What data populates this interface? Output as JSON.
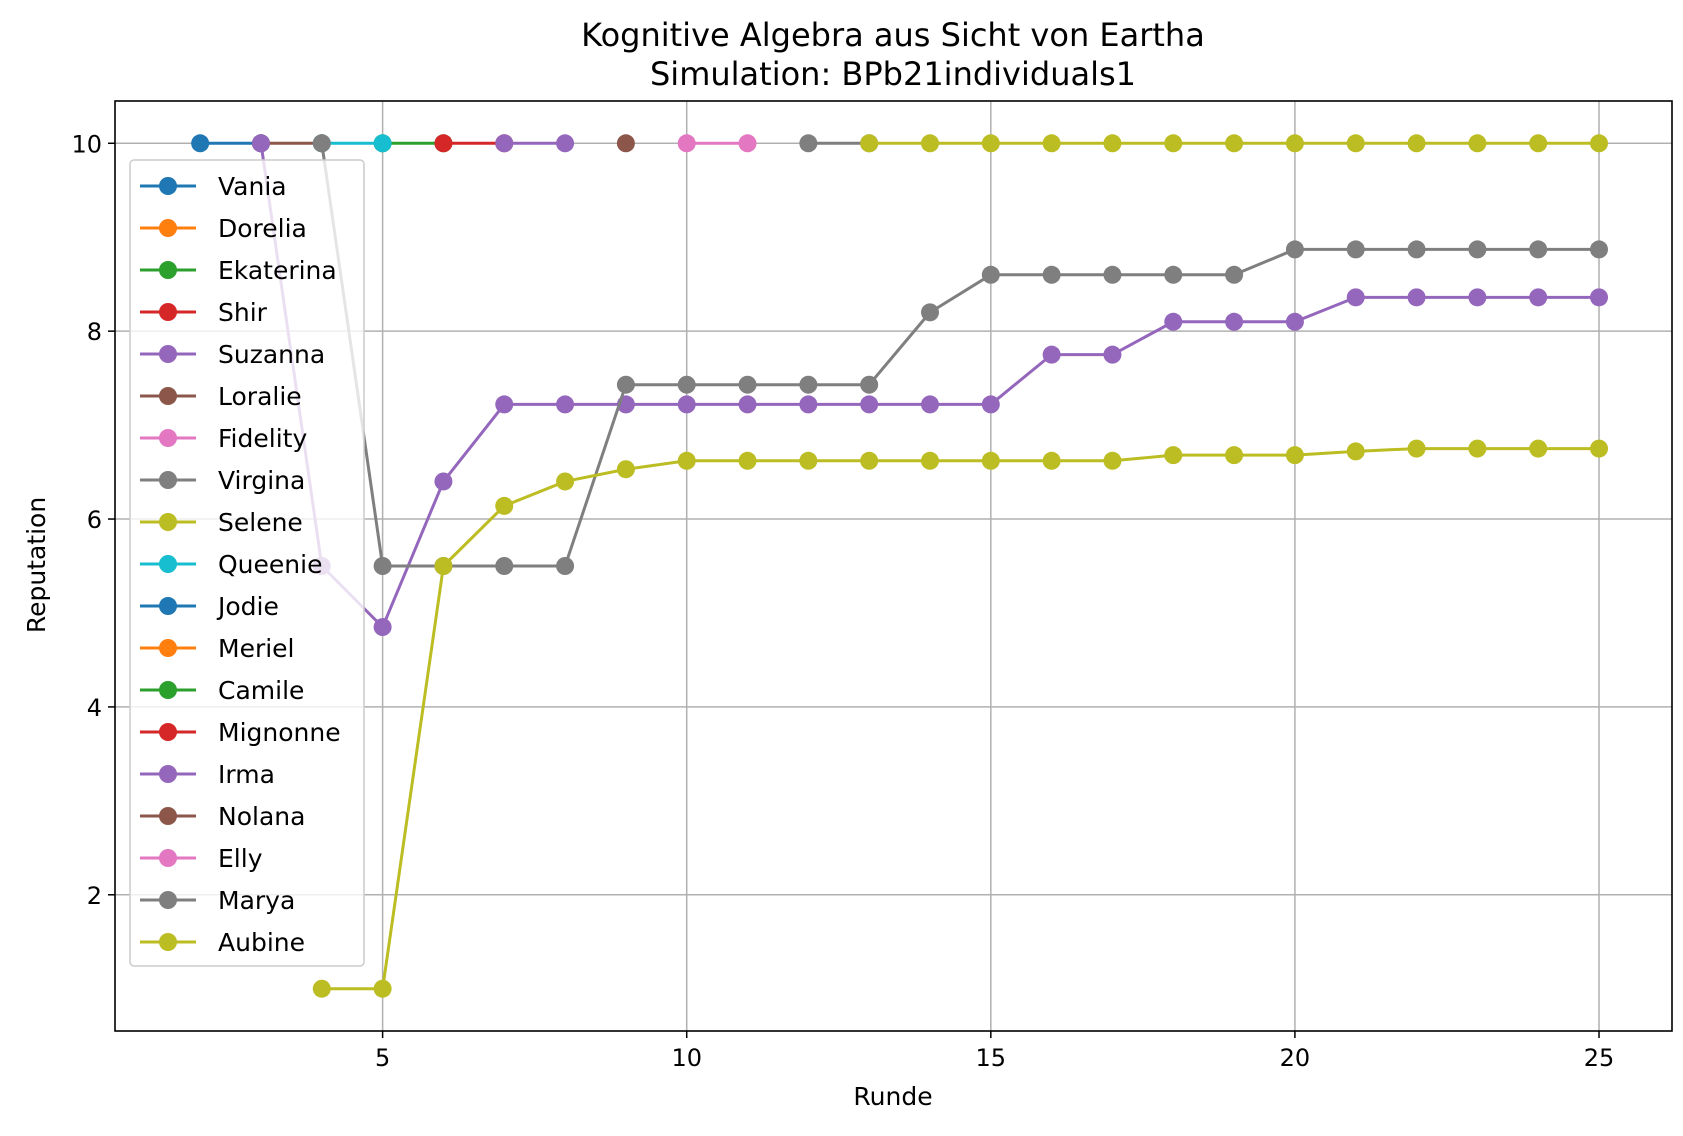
{
  "chart_data": {
    "type": "line",
    "title": "Kognitive Algebra aus Sicht von Eartha",
    "subtitle": "Simulation: BPb21individuals1",
    "xlabel": "Runde",
    "ylabel": "Reputation",
    "xlim": [
      0.6,
      26.2
    ],
    "ylim": [
      0.55,
      10.45
    ],
    "xticks": [
      5,
      10,
      15,
      20,
      25
    ],
    "yticks": [
      2,
      4,
      6,
      8,
      10
    ],
    "grid": true,
    "legend_position": "upper left",
    "series": [
      {
        "name": "Vania",
        "color": "#1f77b4",
        "points": [
          [
            2,
            10
          ],
          [
            3,
            10
          ]
        ]
      },
      {
        "name": "Dorelia",
        "color": "#ff7f0e",
        "points": []
      },
      {
        "name": "Ekaterina",
        "color": "#2ca02c",
        "points": [
          [
            5,
            10
          ],
          [
            6,
            10
          ]
        ]
      },
      {
        "name": "Shir",
        "color": "#d62728",
        "points": [
          [
            6,
            10
          ],
          [
            7,
            10
          ]
        ]
      },
      {
        "name": "Suzanna",
        "color": "#9467bd",
        "points": [
          [
            7,
            10
          ],
          [
            8,
            10
          ]
        ]
      },
      {
        "name": "Loralie",
        "color": "#8c564b",
        "points": [
          [
            3,
            10
          ],
          [
            4,
            10
          ]
        ]
      },
      {
        "name": "Fidelity",
        "color": "#e377c2",
        "points": [
          [
            10,
            10
          ],
          [
            11,
            10
          ]
        ]
      },
      {
        "name": "Virgina",
        "color": "#7f7f7f",
        "points": [
          [
            12,
            10
          ],
          [
            13,
            10
          ]
        ]
      },
      {
        "name": "Selene",
        "color": "#bcbd22",
        "points": [
          [
            13,
            10
          ],
          [
            14,
            10
          ],
          [
            15,
            10
          ],
          [
            16,
            10
          ],
          [
            17,
            10
          ],
          [
            18,
            10
          ],
          [
            19,
            10
          ],
          [
            20,
            10
          ],
          [
            21,
            10
          ],
          [
            22,
            10
          ],
          [
            23,
            10
          ],
          [
            24,
            10
          ],
          [
            25,
            10
          ]
        ]
      },
      {
        "name": "Queenie",
        "color": "#17becf",
        "points": [
          [
            4,
            10
          ],
          [
            5,
            10
          ]
        ]
      },
      {
        "name": "Jodie",
        "color": "#1f77b4",
        "points": []
      },
      {
        "name": "Meriel",
        "color": "#ff7f0e",
        "points": []
      },
      {
        "name": "Camile",
        "color": "#2ca02c",
        "points": []
      },
      {
        "name": "Mignonne",
        "color": "#d62728",
        "points": []
      },
      {
        "name": "Irma",
        "color": "#9467bd",
        "points": [
          [
            3,
            10
          ],
          [
            4,
            5.5
          ],
          [
            5,
            4.85
          ],
          [
            6,
            6.4
          ],
          [
            7,
            7.22
          ],
          [
            8,
            7.22
          ],
          [
            9,
            7.22
          ],
          [
            10,
            7.22
          ],
          [
            11,
            7.22
          ],
          [
            12,
            7.22
          ],
          [
            13,
            7.22
          ],
          [
            14,
            7.22
          ],
          [
            15,
            7.22
          ],
          [
            16,
            7.75
          ],
          [
            17,
            7.75
          ],
          [
            18,
            8.1
          ],
          [
            19,
            8.1
          ],
          [
            20,
            8.1
          ],
          [
            21,
            8.36
          ],
          [
            22,
            8.36
          ],
          [
            23,
            8.36
          ],
          [
            24,
            8.36
          ],
          [
            25,
            8.36
          ]
        ]
      },
      {
        "name": "Nolana",
        "color": "#8c564b",
        "points": [
          [
            9,
            10
          ]
        ]
      },
      {
        "name": "Elly",
        "color": "#e377c2",
        "points": []
      },
      {
        "name": "Marya",
        "color": "#7f7f7f",
        "points": [
          [
            4,
            10
          ],
          [
            5,
            5.5
          ],
          [
            6,
            5.5
          ],
          [
            7,
            5.5
          ],
          [
            8,
            5.5
          ],
          [
            9,
            7.43
          ],
          [
            10,
            7.43
          ],
          [
            11,
            7.43
          ],
          [
            12,
            7.43
          ],
          [
            13,
            7.43
          ],
          [
            14,
            8.2
          ],
          [
            15,
            8.6
          ],
          [
            16,
            8.6
          ],
          [
            17,
            8.6
          ],
          [
            18,
            8.6
          ],
          [
            19,
            8.6
          ],
          [
            20,
            8.87
          ],
          [
            21,
            8.87
          ],
          [
            22,
            8.87
          ],
          [
            23,
            8.87
          ],
          [
            24,
            8.87
          ],
          [
            25,
            8.87
          ]
        ]
      },
      {
        "name": "Aubine",
        "color": "#bcbd22",
        "points": [
          [
            4,
            1.0
          ],
          [
            5,
            1.0
          ],
          [
            6,
            5.5
          ],
          [
            7,
            6.14
          ],
          [
            8,
            6.4
          ],
          [
            9,
            6.53
          ],
          [
            10,
            6.62
          ],
          [
            11,
            6.62
          ],
          [
            12,
            6.62
          ],
          [
            13,
            6.62
          ],
          [
            14,
            6.62
          ],
          [
            15,
            6.62
          ],
          [
            16,
            6.62
          ],
          [
            17,
            6.62
          ],
          [
            18,
            6.68
          ],
          [
            19,
            6.68
          ],
          [
            20,
            6.68
          ],
          [
            21,
            6.72
          ],
          [
            22,
            6.75
          ],
          [
            23,
            6.75
          ],
          [
            24,
            6.75
          ],
          [
            25,
            6.75
          ]
        ]
      }
    ]
  }
}
